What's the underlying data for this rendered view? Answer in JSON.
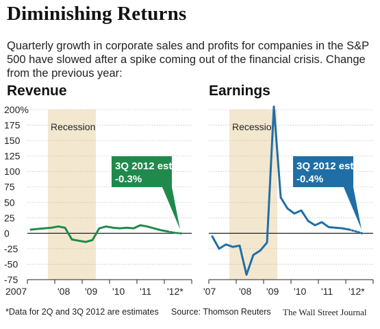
{
  "header": {
    "title": "Diminishing Returns",
    "subtitle": "Quarterly growth in corporate sales and profits for companies in the S&P 500 have slowed after a spike coming out of the financial crisis. Change from the previous year:"
  },
  "footer": {
    "note": "*Data for 2Q and 3Q 2012 are estimates",
    "source": "Source: Thomson Reuters",
    "credit": "The Wall Street Journal"
  },
  "colors": {
    "recession_band": "#f3e8cf",
    "revenue_line": "#1f8a4c",
    "earnings_line": "#1f6fa6",
    "grid": "#bdbdbd",
    "axis": "#222222"
  },
  "chart_data": [
    {
      "type": "line",
      "title": "Revenue",
      "series": [
        {
          "x": [
            "2007Q1",
            "2007Q2",
            "2007Q3",
            "2007Q4",
            "2008Q1",
            "2008Q2",
            "2008Q3",
            "2008Q4",
            "2009Q1",
            "2009Q2",
            "2009Q3",
            "2009Q4",
            "2010Q1",
            "2010Q2",
            "2010Q3",
            "2010Q4",
            "2011Q1",
            "2011Q2",
            "2011Q3",
            "2011Q4",
            "2012Q1",
            "2012Q2",
            "2012Q3"
          ],
          "values": [
            6,
            7,
            8,
            9,
            11,
            9,
            -10,
            -12,
            -14,
            -11,
            8,
            11,
            9,
            8,
            9,
            8,
            13,
            11,
            8,
            5,
            3,
            1,
            -0.3
          ],
          "estimated_from": "2012Q2"
        }
      ],
      "recession": [
        "2007Q4",
        "2009Q2"
      ],
      "annotation": {
        "label": "3Q 2012 est.:",
        "value": "-0.3%"
      },
      "yticks": [
        "200%",
        "175",
        "150",
        "125",
        "100",
        "75",
        "50",
        "25",
        "0",
        "-25",
        "-50",
        "-75"
      ],
      "xticks": [
        "2007",
        "'08",
        "'09",
        "'10",
        "'11",
        "'12*"
      ],
      "recession_label": "Recession",
      "ylim": [
        -75,
        200
      ]
    },
    {
      "type": "line",
      "title": "Earnings",
      "series": [
        {
          "x": [
            "2007Q1",
            "2007Q2",
            "2007Q3",
            "2007Q4",
            "2008Q1",
            "2008Q2",
            "2008Q3",
            "2008Q4",
            "2009Q1",
            "2009Q2",
            "2009Q3",
            "2009Q4",
            "2010Q1",
            "2010Q2",
            "2010Q3",
            "2010Q4",
            "2011Q1",
            "2011Q2",
            "2011Q3",
            "2011Q4",
            "2012Q1",
            "2012Q2",
            "2012Q3"
          ],
          "values": [
            -5,
            -25,
            -18,
            -22,
            -20,
            -67,
            -35,
            -28,
            -15,
            205,
            58,
            40,
            32,
            37,
            20,
            13,
            18,
            10,
            9,
            8,
            6,
            3,
            -0.4
          ],
          "estimated_from": "2012Q2"
        }
      ],
      "recession": [
        "2007Q4",
        "2009Q2"
      ],
      "annotation": {
        "label": "3Q 2012 est.:",
        "value": "-0.4%"
      },
      "xticks": [
        "'07",
        "'08",
        "'09",
        "'10",
        "'11",
        "'12*"
      ],
      "recession_label": "Recession",
      "ylim": [
        -75,
        200
      ]
    }
  ]
}
